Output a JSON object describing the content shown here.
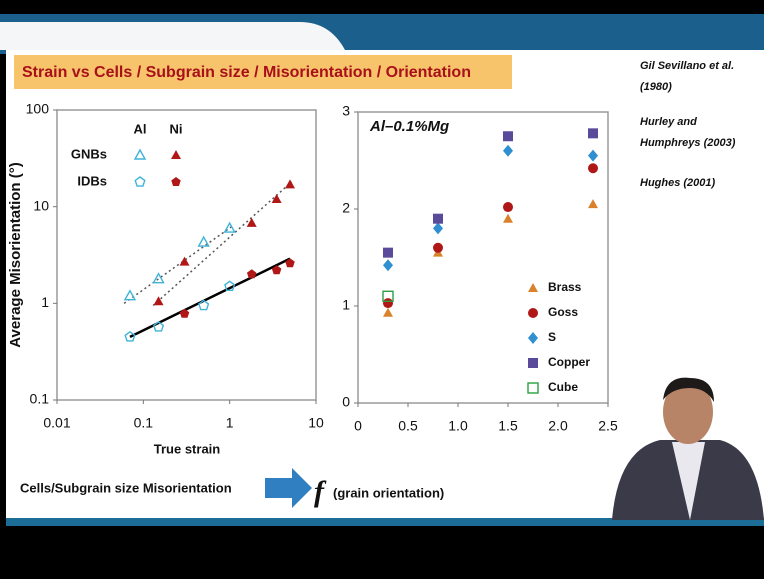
{
  "slide": {
    "title": "Strain vs Cells / Subgrain size / Misorientation / Orientation",
    "references": [
      "Gil Sevillano et al.",
      "(1980)",
      "Hurley and",
      "Humphreys (2003)",
      "Hughes (2001)"
    ],
    "footer_left": "Cells/Subgrain size Misorientation",
    "footer_f": "f",
    "footer_right": "(grain orientation)"
  },
  "chart_data": [
    {
      "type": "scatter",
      "xlabel": "True strain",
      "ylabel": "Average Misorientation (°)",
      "log_x": true,
      "log_y": true,
      "xlim": [
        0.01,
        10
      ],
      "ylim": [
        0.1,
        100
      ],
      "xticks": [
        0.01,
        0.1,
        1,
        10
      ],
      "yticks": [
        0.1,
        1,
        10,
        100
      ],
      "series": [
        {
          "name": "Al",
          "group": "GNBs",
          "marker": "triangle-open",
          "color": "#3fb4d8",
          "x": [
            0.07,
            0.15,
            0.5,
            1
          ],
          "values": [
            1.2,
            1.8,
            4.3,
            6
          ]
        },
        {
          "name": "Ni",
          "group": "GNBs",
          "marker": "triangle",
          "color": "#b01818",
          "x": [
            0.15,
            0.3,
            1.8,
            3.5,
            5
          ],
          "values": [
            1.05,
            2.7,
            6.8,
            12,
            17
          ]
        },
        {
          "name": "Al",
          "group": "IDBs",
          "marker": "pentagon-open",
          "color": "#3fb4d8",
          "x": [
            0.07,
            0.15,
            0.5,
            1
          ],
          "values": [
            0.45,
            0.57,
            0.95,
            1.5
          ]
        },
        {
          "name": "Ni",
          "group": "IDBs",
          "marker": "pentagon",
          "color": "#b01818",
          "x": [
            0.3,
            1.8,
            3.5,
            5
          ],
          "values": [
            0.78,
            2.0,
            2.2,
            2.6
          ]
        }
      ],
      "fits": [
        {
          "style": "dotted",
          "color": "#555555",
          "x": [
            0.06,
            1.05
          ],
          "values": [
            1.0,
            6.2
          ]
        },
        {
          "style": "dotted",
          "color": "#555555",
          "x": [
            0.13,
            5.2
          ],
          "values": [
            0.95,
            18
          ]
        },
        {
          "style": "solid",
          "color": "#000000",
          "x": [
            0.07,
            5
          ],
          "values": [
            0.45,
            2.9
          ]
        }
      ]
    },
    {
      "type": "scatter",
      "annotation": "Al–0.1%Mg",
      "xlim": [
        0,
        2.5
      ],
      "ylim": [
        0,
        3
      ],
      "xticks": [
        0,
        0.5,
        {
          "value": 1,
          "label": "1.0"
        },
        1.5,
        {
          "value": 2,
          "label": "2.0"
        },
        2.5
      ],
      "yticks": [
        0,
        1,
        2,
        3
      ],
      "x": [
        0.3,
        0.8,
        1.5,
        2.35
      ],
      "series": [
        {
          "name": "Brass",
          "marker": "triangle",
          "color": "#d9822b",
          "values": [
            0.93,
            1.55,
            1.9,
            2.05
          ]
        },
        {
          "name": "Goss",
          "marker": "circle",
          "color": "#b01818",
          "values": [
            1.03,
            1.6,
            2.02,
            2.42
          ]
        },
        {
          "name": "S",
          "marker": "diamond",
          "color": "#2f8fd0",
          "values": [
            1.42,
            1.8,
            2.6,
            2.55
          ]
        },
        {
          "name": "Copper",
          "marker": "square",
          "color": "#5a4a9a",
          "values": [
            1.55,
            1.9,
            2.75,
            2.78
          ]
        },
        {
          "name": "Cube",
          "marker": "square-open",
          "color": "#2aa040",
          "values": [
            1.1,
            null,
            null,
            null
          ]
        }
      ]
    }
  ]
}
